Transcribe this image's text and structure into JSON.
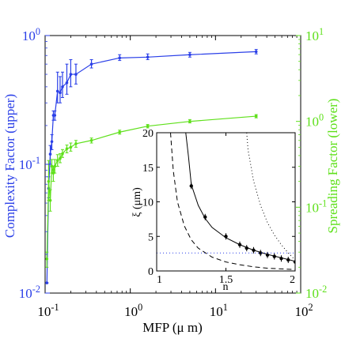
{
  "chart_data": [
    {
      "type": "line",
      "xlabel": "MFP (μ m)",
      "ylabel_left": "Complexity Factor (upper)",
      "ylabel_right": "Spreading Factor (lower)",
      "x_scale": "log",
      "y_scale": "log",
      "xlim": [
        0.1,
        100
      ],
      "ylim_left": [
        0.01,
        1
      ],
      "ylim_right": [
        0.01,
        10
      ],
      "x_ticks": [
        {
          "value": 0.1,
          "base": "10",
          "exp": "-1"
        },
        {
          "value": 1,
          "base": "10",
          "exp": "0"
        },
        {
          "value": 10,
          "base": "10",
          "exp": "1"
        },
        {
          "value": 100,
          "base": "10",
          "exp": "2"
        }
      ],
      "y_ticks_left": [
        {
          "value": 0.01,
          "base": "10",
          "exp": "-2"
        },
        {
          "value": 0.1,
          "base": "10",
          "exp": "-1"
        },
        {
          "value": 1,
          "base": "10",
          "exp": "0"
        }
      ],
      "y_ticks_right": [
        {
          "value": 0.01,
          "base": "10",
          "exp": "-2"
        },
        {
          "value": 0.1,
          "base": "10",
          "exp": "-1"
        },
        {
          "value": 1,
          "base": "10",
          "exp": "0"
        },
        {
          "value": 10,
          "base": "10",
          "exp": "1"
        }
      ],
      "colors": {
        "upper": "#2a3fe8",
        "lower": "#5ee01a",
        "axis": "#000000"
      },
      "series": [
        {
          "axis": "left",
          "x": [
            0.105,
            0.11,
            0.115,
            0.12,
            0.125,
            0.13,
            0.14,
            0.15,
            0.16,
            0.18,
            0.2,
            0.23,
            0.35,
            0.75,
            1.6,
            5,
            30
          ],
          "y": [
            0.012,
            0.065,
            0.12,
            0.15,
            0.24,
            0.24,
            0.37,
            0.36,
            0.4,
            0.43,
            0.5,
            0.5,
            0.6,
            0.67,
            0.68,
            0.71,
            0.75
          ],
          "yerr_low": [
            0.012,
            0.055,
            0.1,
            0.13,
            0.22,
            0.22,
            0.3,
            0.3,
            0.33,
            0.35,
            0.4,
            0.42,
            0.56,
            0.64,
            0.65,
            0.68,
            0.72
          ],
          "yerr_high": [
            0.012,
            0.08,
            0.14,
            0.17,
            0.26,
            0.26,
            0.52,
            0.48,
            0.52,
            0.6,
            0.65,
            0.6,
            0.65,
            0.71,
            0.72,
            0.74,
            0.78
          ]
        },
        {
          "axis": "right",
          "x": [
            0.105,
            0.11,
            0.115,
            0.12,
            0.125,
            0.13,
            0.14,
            0.15,
            0.16,
            0.18,
            0.2,
            0.23,
            0.35,
            0.75,
            1.6,
            5,
            30
          ],
          "y": [
            0.025,
            0.2,
            0.12,
            0.3,
            0.25,
            0.3,
            0.35,
            0.37,
            0.42,
            0.48,
            0.5,
            0.55,
            0.6,
            0.75,
            0.88,
            1.0,
            1.15
          ],
          "yerr_low": [
            0.02,
            0.12,
            0.09,
            0.25,
            0.2,
            0.25,
            0.3,
            0.33,
            0.38,
            0.43,
            0.45,
            0.5,
            0.56,
            0.71,
            0.84,
            0.96,
            1.1
          ],
          "yerr_high": [
            0.03,
            0.35,
            0.16,
            0.36,
            0.3,
            0.36,
            0.41,
            0.42,
            0.47,
            0.53,
            0.56,
            0.6,
            0.64,
            0.79,
            0.92,
            1.05,
            1.2
          ]
        }
      ]
    },
    {
      "type": "line",
      "xlabel": "n",
      "ylabel": "ξ (μm)",
      "xlim": [
        1,
        2
      ],
      "ylim": [
        0,
        20
      ],
      "x_ticks": [
        1,
        1.5,
        2
      ],
      "x_tick_labels": [
        "1",
        "1.5",
        "2"
      ],
      "y_ticks": [
        0,
        5,
        10,
        15,
        20
      ],
      "y_tick_labels": [
        "0",
        "5",
        "10",
        "15",
        "20"
      ],
      "series": [
        {
          "style": "solid-markers",
          "x": [
            1.25,
            1.35,
            1.5,
            1.6,
            1.65,
            1.7,
            1.75,
            1.8,
            1.85,
            1.9,
            1.95,
            2.0
          ],
          "y": [
            12.3,
            7.8,
            5.0,
            3.8,
            3.3,
            3.0,
            2.6,
            2.3,
            2.1,
            1.8,
            1.6,
            1.3
          ]
        },
        {
          "style": "solid",
          "x": [
            1.21,
            1.23,
            1.25,
            1.3,
            1.35,
            1.4,
            1.5,
            1.6,
            1.7,
            1.8,
            1.9,
            2.0
          ],
          "y": [
            20,
            16.5,
            12.5,
            9.5,
            7.6,
            6.3,
            4.8,
            3.8,
            3.0,
            2.4,
            1.9,
            1.4
          ]
        },
        {
          "style": "dashed",
          "x": [
            1.1,
            1.12,
            1.15,
            1.2,
            1.25,
            1.3,
            1.4,
            1.5,
            1.6,
            1.7,
            1.8,
            2.0
          ],
          "y": [
            20,
            14.5,
            10,
            6.5,
            4.5,
            3.3,
            2.0,
            1.3,
            0.9,
            0.6,
            0.4,
            0.2
          ]
        },
        {
          "style": "dotted",
          "x": [
            1.65,
            1.66,
            1.7,
            1.75,
            1.8,
            1.85,
            1.9,
            1.95,
            2.0
          ],
          "y": [
            20,
            17.5,
            13,
            9.5,
            7,
            5.2,
            3.8,
            2.6,
            1.6
          ]
        },
        {
          "style": "dotted-blue",
          "x": [
            1.0,
            2.0
          ],
          "y": [
            2.6,
            2.6
          ]
        }
      ]
    }
  ]
}
